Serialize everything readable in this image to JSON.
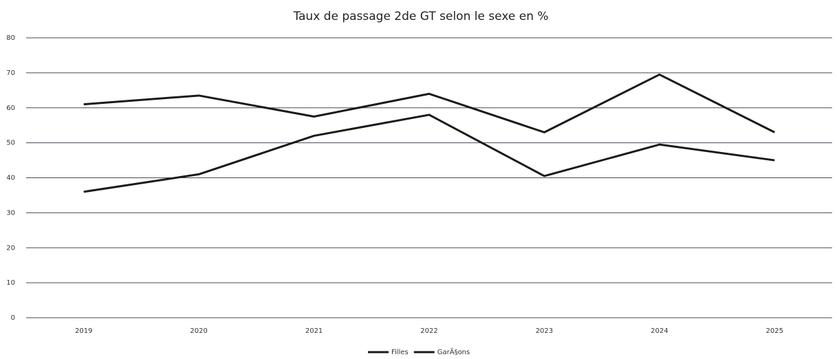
{
  "chart_data": {
    "type": "line",
    "title": "Taux de passage 2de GT selon le sexe en %",
    "categories": [
      "2019",
      "2020",
      "2021",
      "2022",
      "2023",
      "2024",
      "2025"
    ],
    "series": [
      {
        "name": "Filles",
        "color": "#1a1a1a",
        "values": [
          61,
          63.5,
          57.5,
          64,
          53,
          69.5,
          53
        ]
      },
      {
        "name": "GarÃ§ons",
        "color": "#1a1a1a",
        "values": [
          36,
          41,
          52,
          58,
          40.5,
          49.5,
          45
        ]
      }
    ],
    "ylim": [
      0,
      80
    ],
    "yticks": [
      0,
      10,
      20,
      30,
      40,
      50,
      60,
      70,
      80
    ],
    "grid": true,
    "legend": "bottom"
  }
}
